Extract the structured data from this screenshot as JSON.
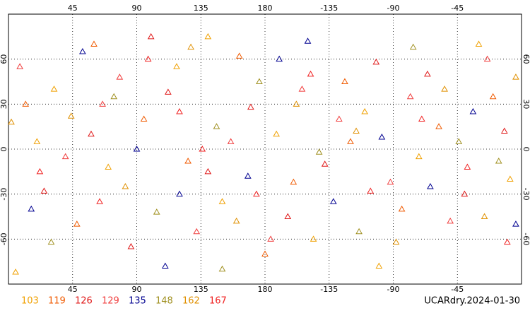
{
  "chart_data": {
    "type": "scatter",
    "title": "UCARdry.2024-01-30",
    "xlim": [
      0,
      360
    ],
    "ylim": [
      -90,
      90
    ],
    "xticks": [
      45,
      90,
      135,
      180,
      {
        "value": 225,
        "label": "-135"
      },
      {
        "value": 270,
        "label": "-90"
      },
      {
        "value": 315,
        "label": "-45"
      }
    ],
    "yticks": [
      60,
      30,
      0,
      -30,
      -60
    ],
    "grid": true,
    "series": [
      {
        "name": "103",
        "color": "#f0a000",
        "x": [
          5,
          32,
          70,
          118,
          150,
          188,
          214,
          250,
          288,
          330,
          352,
          20,
          140,
          260
        ],
        "y": [
          -82,
          40,
          -12,
          55,
          -35,
          10,
          -60,
          25,
          -5,
          70,
          -20,
          5,
          75,
          -78
        ]
      },
      {
        "name": "119",
        "color": "#f05a00",
        "x": [
          12,
          48,
          95,
          126,
          162,
          200,
          236,
          276,
          302,
          340,
          60,
          180,
          240
        ],
        "y": [
          30,
          -50,
          20,
          -8,
          62,
          -22,
          45,
          -40,
          15,
          35,
          70,
          -70,
          5
        ]
      },
      {
        "name": "126",
        "color": "#e01818",
        "x": [
          25,
          58,
          86,
          112,
          170,
          196,
          222,
          258,
          294,
          320,
          348,
          140,
          100
        ],
        "y": [
          -28,
          10,
          -65,
          38,
          28,
          -45,
          -10,
          58,
          50,
          -30,
          12,
          -15,
          75
        ]
      },
      {
        "name": "129",
        "color": "#f03c3c",
        "x": [
          8,
          40,
          78,
          132,
          156,
          206,
          232,
          268,
          310,
          336,
          184,
          66,
          282
        ],
        "y": [
          55,
          -5,
          48,
          -55,
          5,
          40,
          20,
          -22,
          -48,
          60,
          -60,
          30,
          35
        ]
      },
      {
        "name": "135",
        "color": "#000090",
        "x": [
          16,
          52,
          90,
          120,
          168,
          190,
          228,
          262,
          296,
          326,
          356,
          110,
          210
        ],
        "y": [
          -40,
          65,
          0,
          -30,
          -18,
          60,
          -35,
          8,
          -25,
          25,
          -50,
          -78,
          72
        ]
      },
      {
        "name": "148",
        "color": "#a09020",
        "x": [
          30,
          74,
          104,
          146,
          176,
          218,
          246,
          284,
          316,
          344,
          150
        ],
        "y": [
          -62,
          35,
          -42,
          15,
          45,
          -2,
          -55,
          68,
          5,
          -8,
          -80
        ]
      },
      {
        "name": "162",
        "color": "#e09000",
        "x": [
          2,
          44,
          82,
          128,
          160,
          202,
          244,
          272,
          306,
          334,
          356
        ],
        "y": [
          18,
          22,
          -25,
          68,
          -48,
          30,
          12,
          -62,
          40,
          -45,
          48
        ]
      },
      {
        "name": "167",
        "color": "#f02020",
        "x": [
          22,
          64,
          98,
          136,
          174,
          212,
          254,
          290,
          322,
          350,
          120
        ],
        "y": [
          -15,
          -35,
          60,
          0,
          -30,
          50,
          -28,
          20,
          -12,
          -62,
          25
        ]
      }
    ]
  }
}
